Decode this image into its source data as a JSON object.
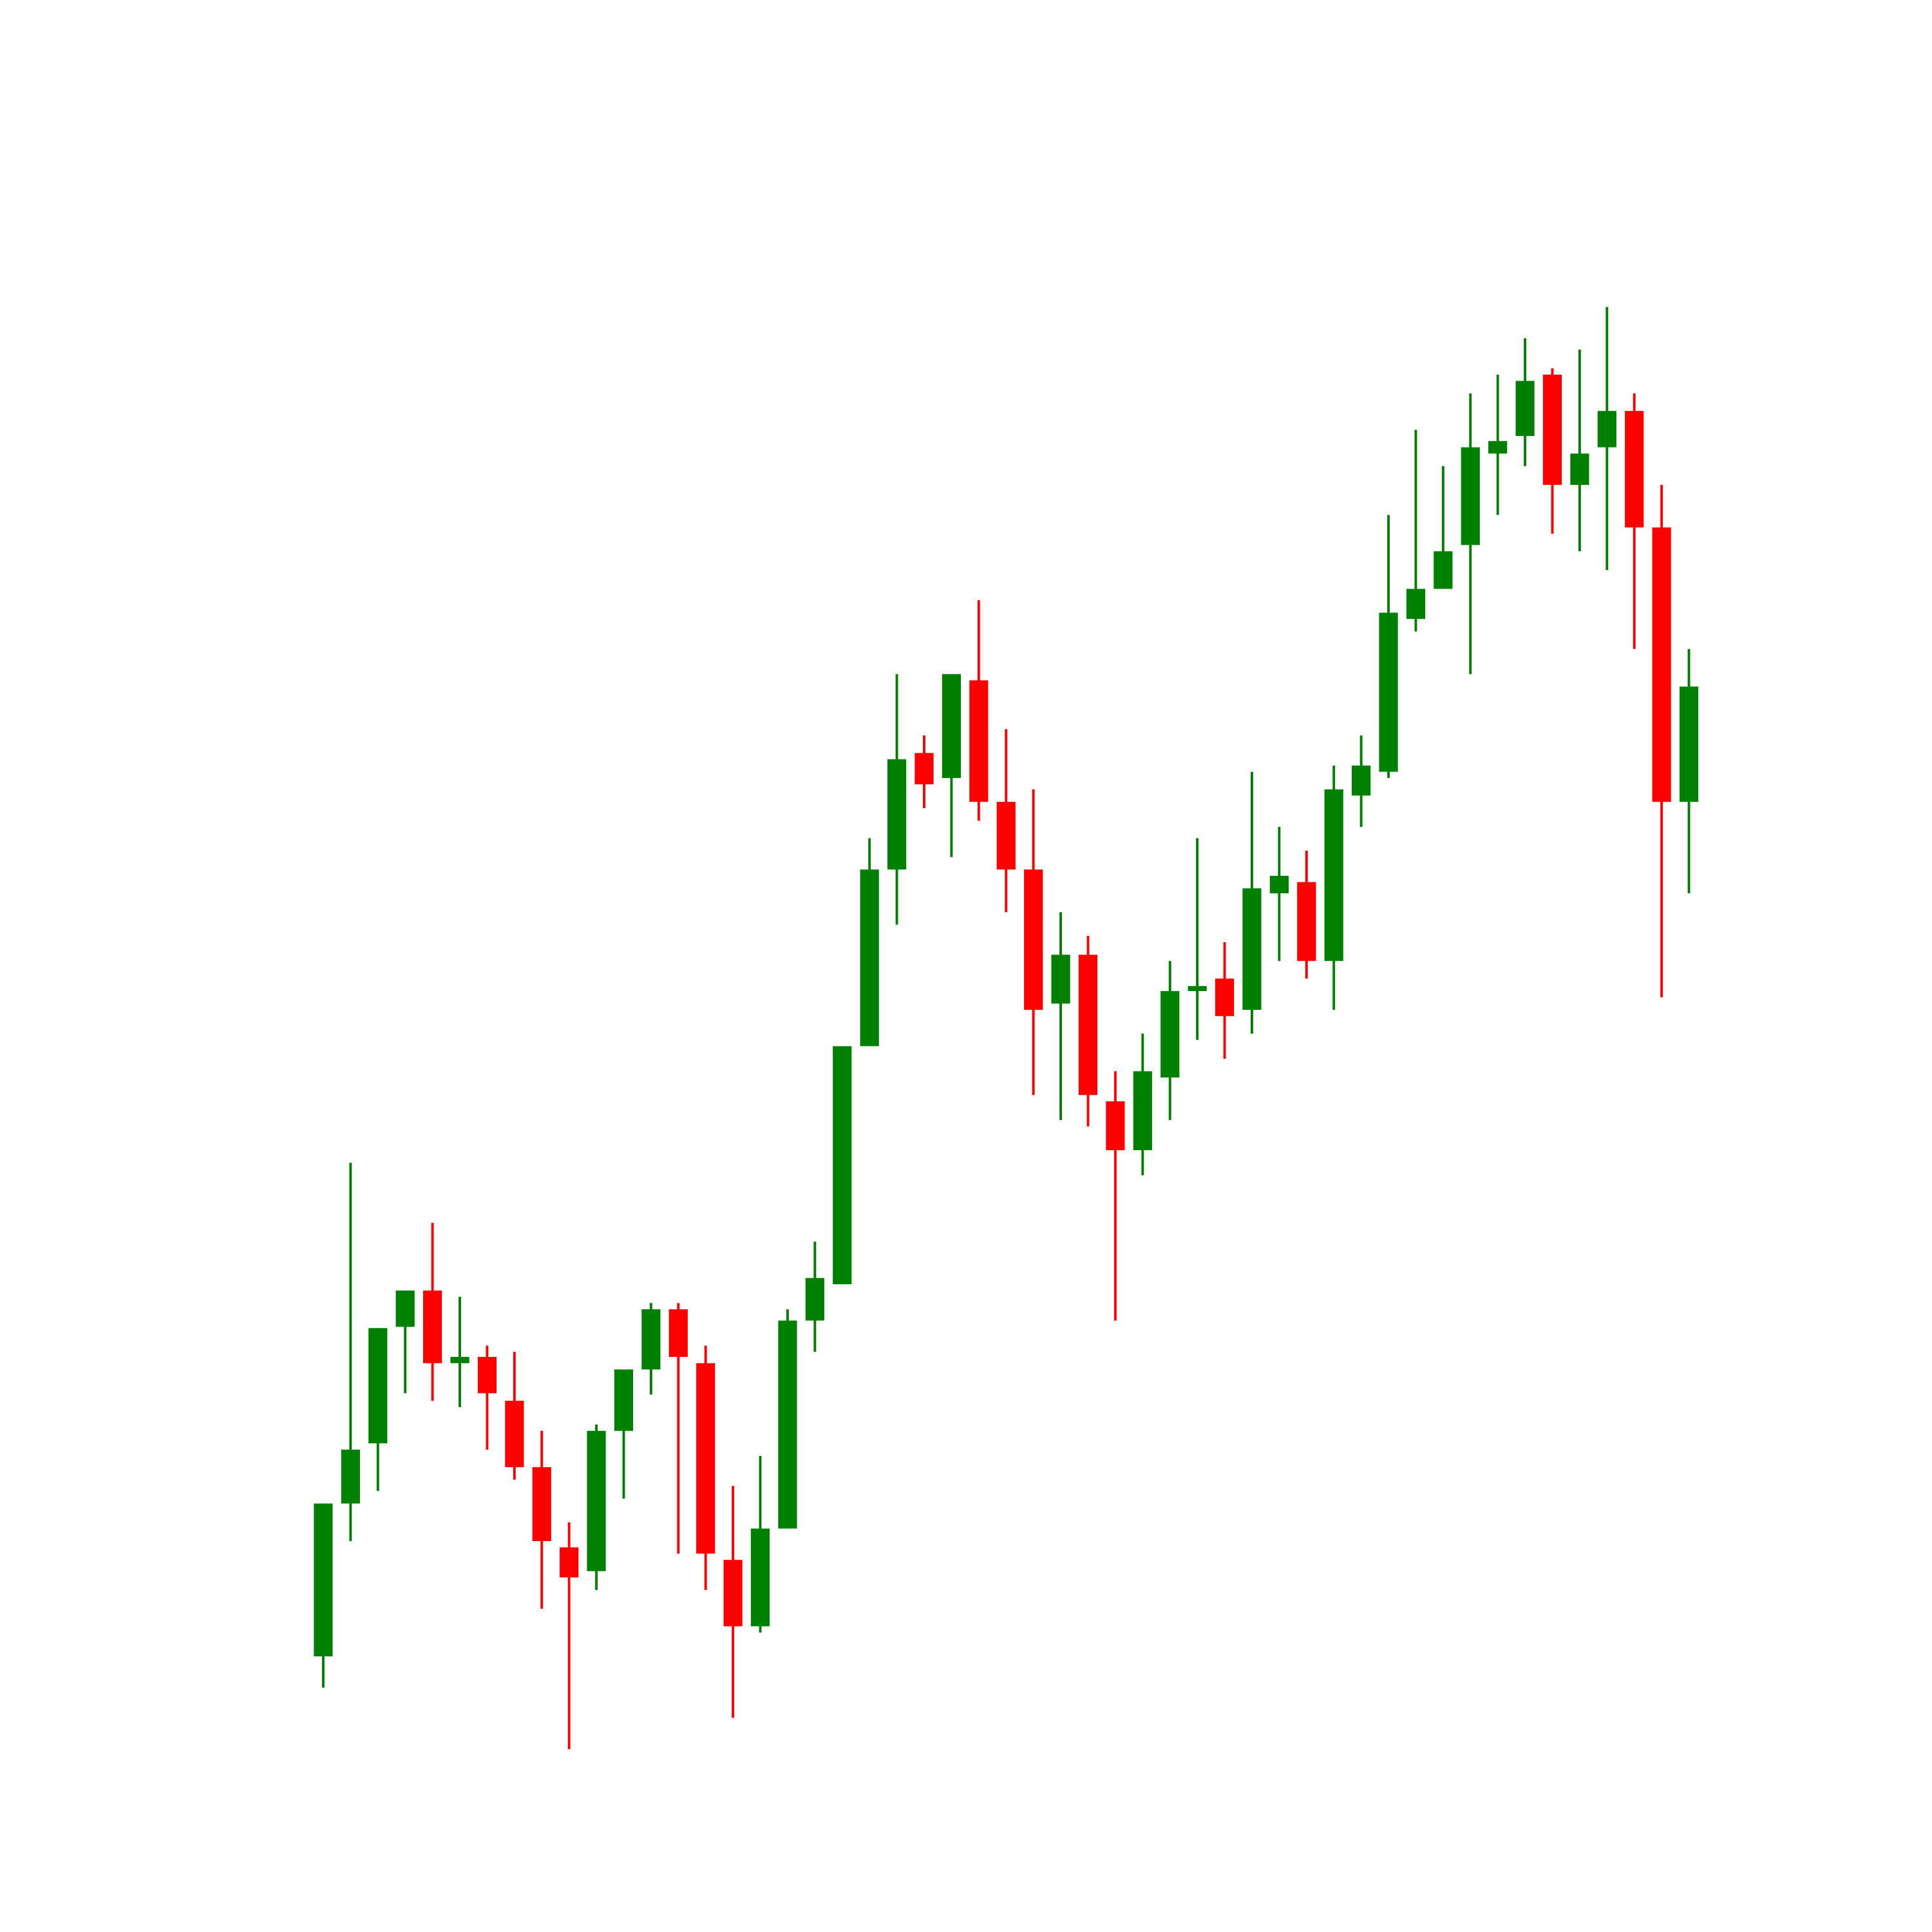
{
  "chart_data": {
    "type": "candlestick",
    "up_color": "#008000",
    "down_color": "#ff0000",
    "ylim": [
      0,
      140
    ],
    "open": [
      7.8,
      20.0,
      24.8,
      34.1,
      37.0,
      31.2,
      31.7,
      28.2,
      22.9,
      16.5,
      14.6,
      25.8,
      30.7,
      35.5,
      31.2,
      15.5,
      10.2,
      18.0,
      34.6,
      37.5,
      56.5,
      70.6,
      79.9,
      77.9,
      85.7,
      76.0,
      70.6,
      59.9,
      63.8,
      52.1,
      48.2,
      54.0,
      60.9,
      61.9,
      59.4,
      68.7,
      69.6,
      63.3,
      76.5,
      78.4,
      90.6,
      93.0,
      96.5,
      103.8,
      105.2,
      110.1,
      101.3,
      104.3,
      107.2,
      97.9,
      76.0
    ],
    "close": [
      20.0,
      24.3,
      34.0,
      37.0,
      31.2,
      31.7,
      28.8,
      22.9,
      17.0,
      14.1,
      25.8,
      30.7,
      35.5,
      31.7,
      16.0,
      10.2,
      18.0,
      34.6,
      38.0,
      56.5,
      70.6,
      79.4,
      77.4,
      86.2,
      76.0,
      70.6,
      59.4,
      63.8,
      52.6,
      48.2,
      54.5,
      60.9,
      61.3,
      58.9,
      69.1,
      70.1,
      63.3,
      77.0,
      78.9,
      91.1,
      93.0,
      96.0,
      104.3,
      104.8,
      109.6,
      101.3,
      103.8,
      107.2,
      97.9,
      76.0,
      85.2
    ],
    "high": [
      20.0,
      47.2,
      34.0,
      37.0,
      42.4,
      36.5,
      32.6,
      32.1,
      25.8,
      18.5,
      26.3,
      30.7,
      36.0,
      36.0,
      32.6,
      21.4,
      23.8,
      35.5,
      40.9,
      56.5,
      73.1,
      86.2,
      81.3,
      86.2,
      92.1,
      81.8,
      77.0,
      67.2,
      65.3,
      54.5,
      57.5,
      63.3,
      73.1,
      64.8,
      78.4,
      74.0,
      72.1,
      78.9,
      81.3,
      98.9,
      105.7,
      102.8,
      108.6,
      110.1,
      113.0,
      110.6,
      112.1,
      115.5,
      108.6,
      101.3,
      88.2
    ],
    "low": [
      5.3,
      17.0,
      21.0,
      28.8,
      28.2,
      27.7,
      24.3,
      21.9,
      11.6,
      0.4,
      13.1,
      20.4,
      28.7,
      16.0,
      13.1,
      2.9,
      9.7,
      18.0,
      32.1,
      37.5,
      56.5,
      66.2,
      75.5,
      71.6,
      74.5,
      67.2,
      52.6,
      50.6,
      50.1,
      34.6,
      46.2,
      50.6,
      57.0,
      55.5,
      57.5,
      63.3,
      61.9,
      59.4,
      74.0,
      77.9,
      89.6,
      93.0,
      86.2,
      98.9,
      102.8,
      97.4,
      96.0,
      94.5,
      88.2,
      60.4,
      68.7
    ]
  }
}
